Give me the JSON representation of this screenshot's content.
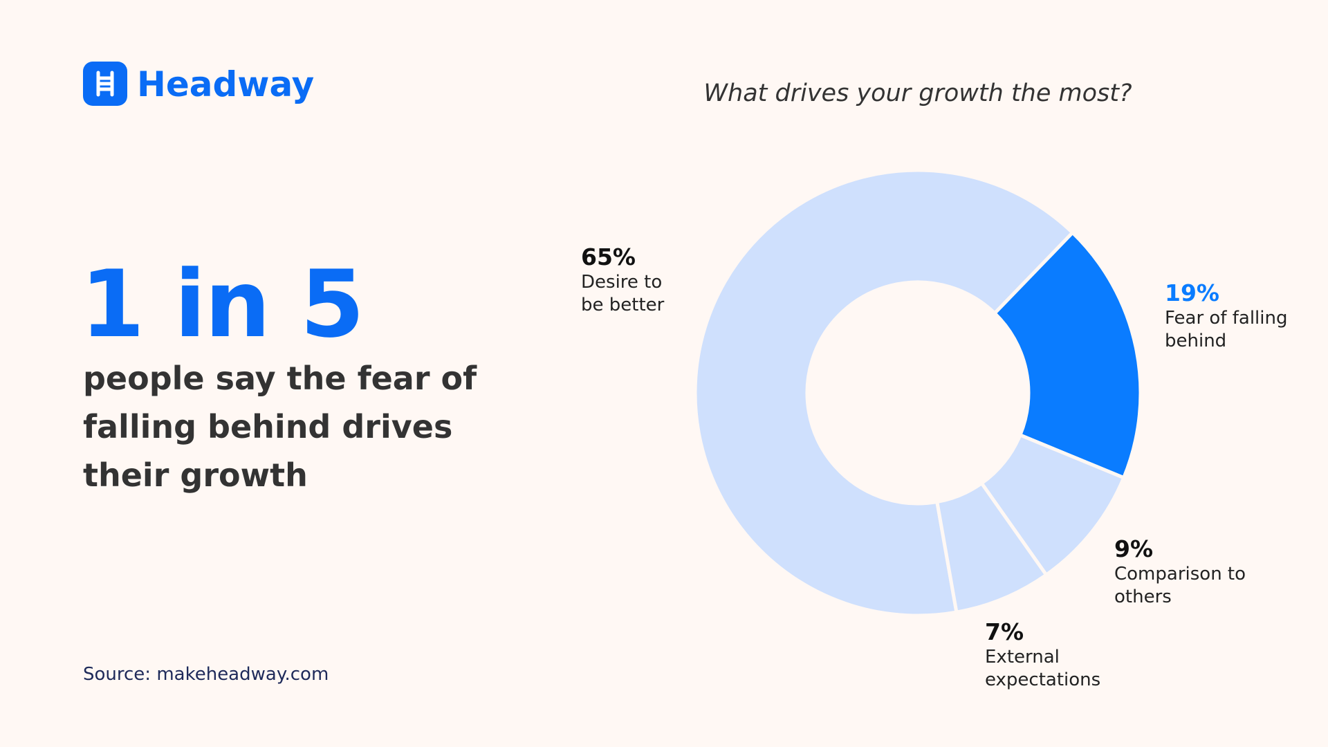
{
  "brand": "Headway",
  "headline": "1 in 5",
  "subheadline": "people say the fear of falling behind drives their growth",
  "source": "Source: makeheadway.com",
  "chart_data": {
    "type": "donut",
    "title": "What drives your growth the most?",
    "categories": [
      "Desire to be better",
      "Fear of falling behind",
      "Comparison to others",
      "External expectations"
    ],
    "values": [
      65,
      19,
      9,
      7
    ],
    "value_labels": [
      "65%",
      "19%",
      "9%",
      "7%"
    ],
    "colors": [
      "#cfe0fd",
      "#0a7cff",
      "#cfe0fd",
      "#cfe0fd"
    ],
    "label_colors": [
      "#111111",
      "#0a7cff",
      "#111111",
      "#111111"
    ]
  }
}
